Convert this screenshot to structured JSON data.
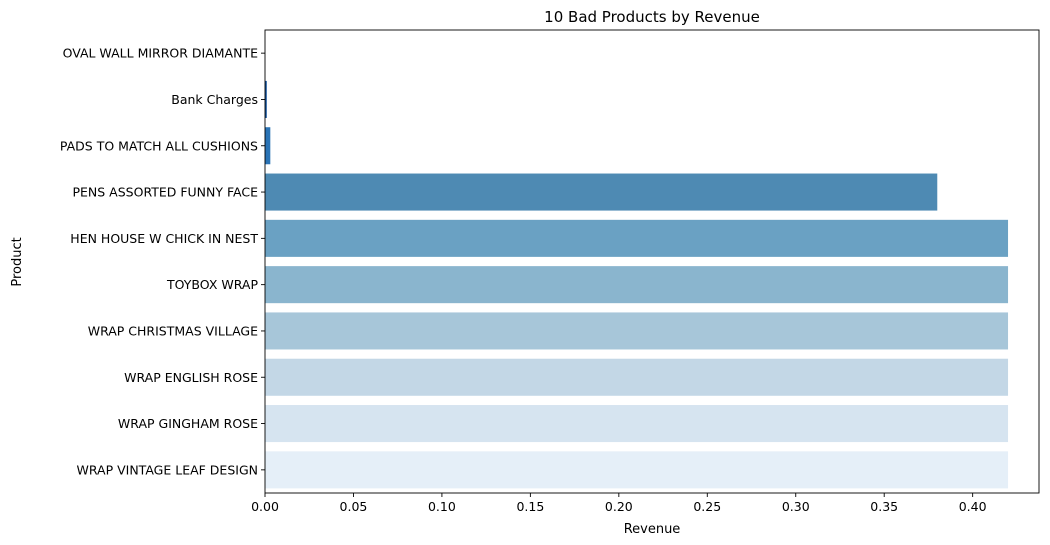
{
  "chart_data": {
    "type": "bar",
    "orientation": "horizontal",
    "title": "10 Bad Products by Revenue",
    "xlabel": "Revenue",
    "ylabel": "Product",
    "xlim": [
      0,
      0.4375
    ],
    "xticks": [
      0.0,
      0.05,
      0.1,
      0.15,
      0.2,
      0.25,
      0.3,
      0.35,
      0.4
    ],
    "xtick_labels": [
      "0.00",
      "0.05",
      "0.10",
      "0.15",
      "0.20",
      "0.25",
      "0.30",
      "0.35",
      "0.40"
    ],
    "grid": false,
    "categories": [
      "OVAL WALL MIRROR DIAMANTE ",
      "Bank Charges",
      "PADS TO MATCH ALL CUSHIONS",
      "PENS ASSORTED FUNNY FACE",
      "HEN HOUSE W CHICK IN NEST",
      "TOYBOX  WRAP ",
      "WRAP CHRISTMAS VILLAGE",
      "WRAP ENGLISH ROSE ",
      "WRAP GINGHAM ROSE ",
      "WRAP VINTAGE LEAF DESIGN"
    ],
    "values": [
      0.0,
      0.001,
      0.003,
      0.38,
      0.42,
      0.42,
      0.42,
      0.42,
      0.42,
      0.42
    ],
    "colors": [
      "#08306b",
      "#0f509b",
      "#2a73b5",
      "#4e8ab3",
      "#6aa1c3",
      "#8ab5ce",
      "#a7c6d9",
      "#c3d7e6",
      "#d6e4f0",
      "#e5eff8"
    ]
  }
}
